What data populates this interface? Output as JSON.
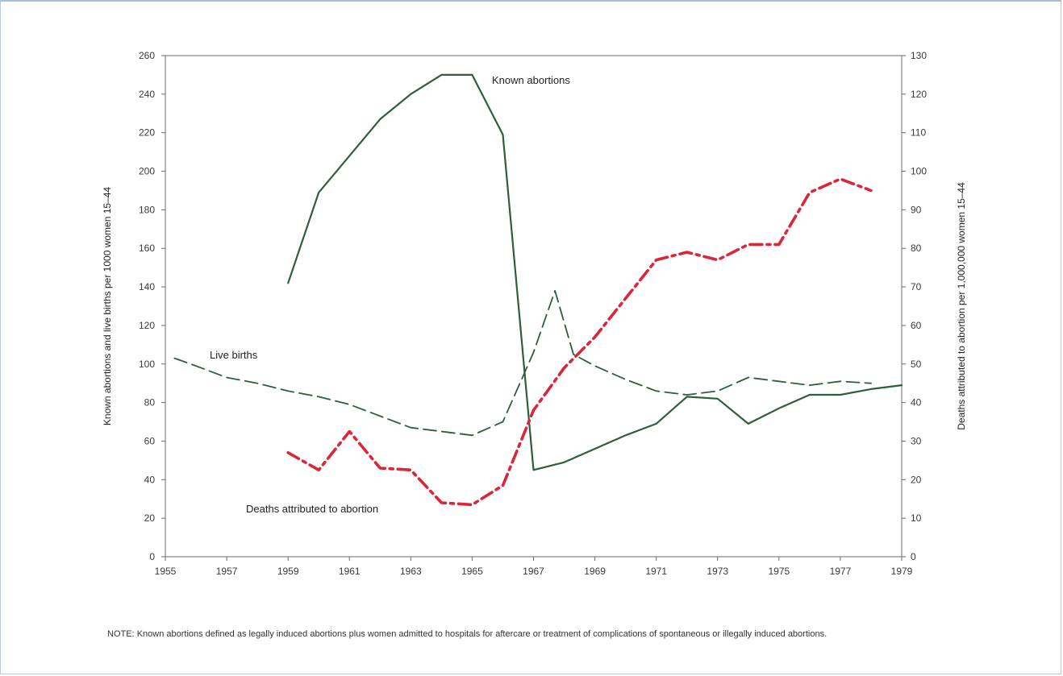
{
  "chart_data": {
    "type": "line",
    "title": "",
    "xlabel": "",
    "ylabel_left": "Known abortions and live births per 1000 women 15–44",
    "ylabel_right": "Deaths attributed to abortion per 1,000,000 women 15–44",
    "xlim": [
      1955,
      1979
    ],
    "ylim_left": [
      0,
      260
    ],
    "ylim_right": [
      0,
      130
    ],
    "x_ticks": [
      "1955",
      "1957",
      "1959",
      "1961",
      "1963",
      "1965",
      "1967",
      "1969",
      "1971",
      "1973",
      "1975",
      "1977",
      "1979"
    ],
    "y_left_ticks": [
      "0",
      "20",
      "40",
      "60",
      "80",
      "100",
      "120",
      "140",
      "160",
      "180",
      "200",
      "220",
      "240",
      "260"
    ],
    "y_right_ticks": [
      "0",
      "10",
      "20",
      "30",
      "40",
      "50",
      "60",
      "70",
      "80",
      "90",
      "100",
      "110",
      "120",
      "130"
    ],
    "series": [
      {
        "name": "Known abortions",
        "axis": "left",
        "style": "solid",
        "color": "#2f5e3c",
        "x": [
          1959,
          1960,
          1961,
          1962,
          1963,
          1964,
          1965,
          1966,
          1967,
          1968,
          1969,
          1970,
          1971,
          1972,
          1973,
          1974,
          1975,
          1976,
          1977,
          1978,
          1979
        ],
        "y": [
          142,
          189,
          208,
          227,
          240,
          250,
          250,
          219,
          45,
          49,
          56,
          63,
          69,
          83,
          82,
          69,
          77,
          84,
          84,
          87,
          89
        ]
      },
      {
        "name": "Live births",
        "axis": "left",
        "style": "dashed",
        "color": "#2f5e3c",
        "x": [
          1955.3,
          1956,
          1957,
          1958,
          1959,
          1960,
          1961,
          1962,
          1963,
          1964,
          1965,
          1966,
          1967,
          1967.7,
          1968.3,
          1969,
          1970,
          1971,
          1972,
          1973,
          1974,
          1975,
          1976,
          1977,
          1978
        ],
        "y": [
          103,
          99,
          93,
          90,
          86,
          83,
          79,
          73,
          67,
          65,
          63,
          70,
          106,
          138,
          105,
          99,
          92,
          86,
          84,
          86,
          93,
          91,
          89,
          91,
          90
        ]
      },
      {
        "name": "Deaths attributed to abortion",
        "axis": "right",
        "style": "dash-dot",
        "color": "#d9263a",
        "x": [
          1959,
          1960,
          1961,
          1962,
          1963,
          1964,
          1965,
          1966,
          1967,
          1968,
          1969,
          1970,
          1971,
          1972,
          1973,
          1974,
          1975,
          1976,
          1977,
          1978
        ],
        "y": [
          27,
          22.5,
          32.5,
          23,
          22.5,
          14,
          13.5,
          18.5,
          38,
          49,
          57,
          67,
          77,
          79,
          77,
          81,
          81,
          94.5,
          98,
          95
        ]
      }
    ],
    "annotations": [
      "Known abortions",
      "Live births",
      "Deaths attributed to abortion"
    ]
  },
  "note": {
    "label": "NOTE:",
    "text": "Known abortions defined as legally induced abortions plus women admitted to hospitals for aftercare or treatment of complications of spontaneous or illegally induced abortions."
  }
}
